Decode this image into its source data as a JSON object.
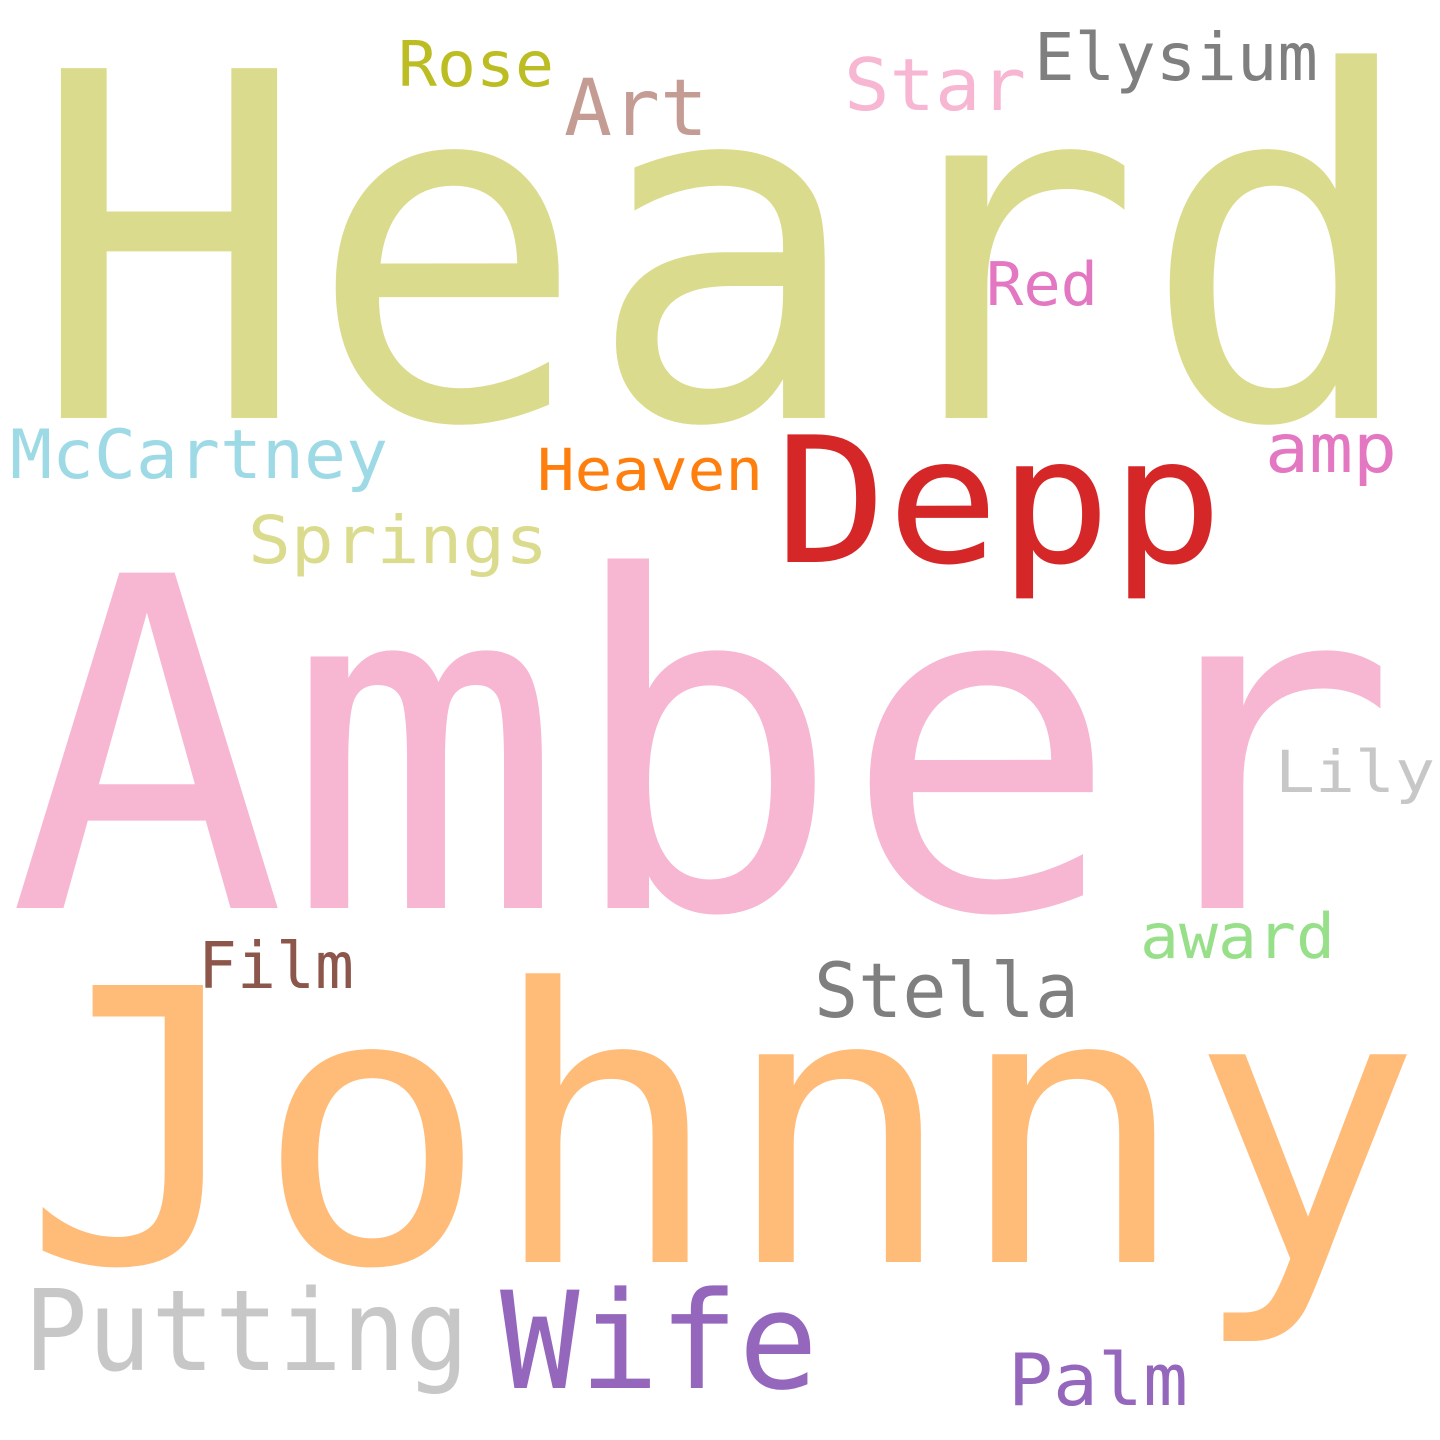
{
  "words": [
    {
      "text": "Heard",
      "color": "#dbdb8d"
    },
    {
      "text": "Amber",
      "color": "#f7b6d2"
    },
    {
      "text": "Johnny",
      "color": "#ffbb78"
    },
    {
      "text": "Depp",
      "color": "#d62728"
    },
    {
      "text": "Wife",
      "color": "#9467bd"
    },
    {
      "text": "Putting",
      "color": "#c7c7c7"
    },
    {
      "text": "Springs",
      "color": "#dbdb8d"
    },
    {
      "text": "McCartney",
      "color": "#9edae5"
    },
    {
      "text": "Heaven",
      "color": "#ff7f0e"
    },
    {
      "text": "Stella",
      "color": "#7f7f7f"
    },
    {
      "text": "Elysium",
      "color": "#7f7f7f"
    },
    {
      "text": "Star",
      "color": "#f7b6d2"
    },
    {
      "text": "Art",
      "color": "#c49c94"
    },
    {
      "text": "Rose",
      "color": "#bcbd22"
    },
    {
      "text": "Red",
      "color": "#e377c2"
    },
    {
      "text": "amp",
      "color": "#e377c2"
    },
    {
      "text": "Lily",
      "color": "#c7c7c7"
    },
    {
      "text": "award",
      "color": "#98df8a"
    },
    {
      "text": "Film",
      "color": "#8c564b"
    },
    {
      "text": "Palm",
      "color": "#9467bd"
    }
  ]
}
